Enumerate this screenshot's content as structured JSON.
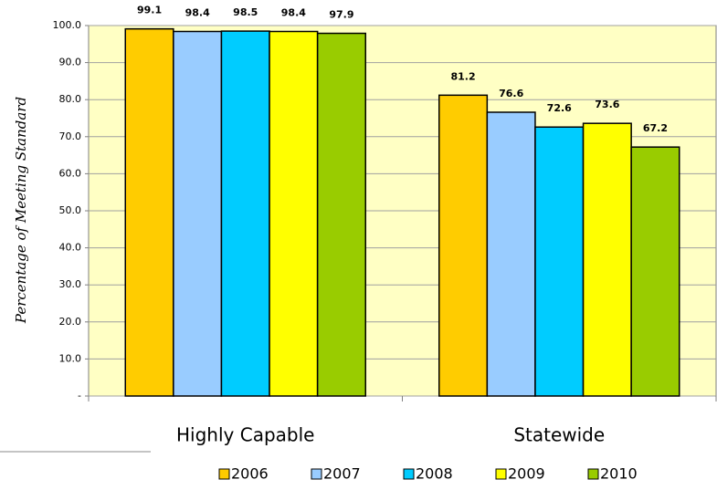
{
  "chart_data": {
    "type": "bar",
    "ylabel": "Percentage of Meeting Standard",
    "categories": [
      "Highly Capable",
      "Statewide"
    ],
    "series": [
      {
        "name": "2006",
        "color": "#FFCC00",
        "values": [
          99.1,
          81.2
        ]
      },
      {
        "name": "2007",
        "color": "#99CCFF",
        "values": [
          98.4,
          76.6
        ]
      },
      {
        "name": "2008",
        "color": "#00CCFF",
        "values": [
          98.5,
          72.6
        ]
      },
      {
        "name": "2009",
        "color": "#FFFF00",
        "values": [
          98.4,
          73.6
        ]
      },
      {
        "name": "2010",
        "color": "#99CC00",
        "values": [
          97.9,
          67.2
        ]
      }
    ],
    "ylim": [
      0,
      100
    ],
    "yticks": [
      {
        "value": 0,
        "label": "-"
      },
      {
        "value": 10,
        "label": "10.0"
      },
      {
        "value": 20,
        "label": "20.0"
      },
      {
        "value": 30,
        "label": "30.0"
      },
      {
        "value": 40,
        "label": "40.0"
      },
      {
        "value": 50,
        "label": "50.0"
      },
      {
        "value": 60,
        "label": "60.0"
      },
      {
        "value": 70,
        "label": "70.0"
      },
      {
        "value": 80,
        "label": "80.0"
      },
      {
        "value": 90,
        "label": "90.0"
      },
      {
        "value": 100,
        "label": "100.0"
      }
    ],
    "grid": true,
    "background": "#FFFFC4",
    "legend": "bottom"
  }
}
